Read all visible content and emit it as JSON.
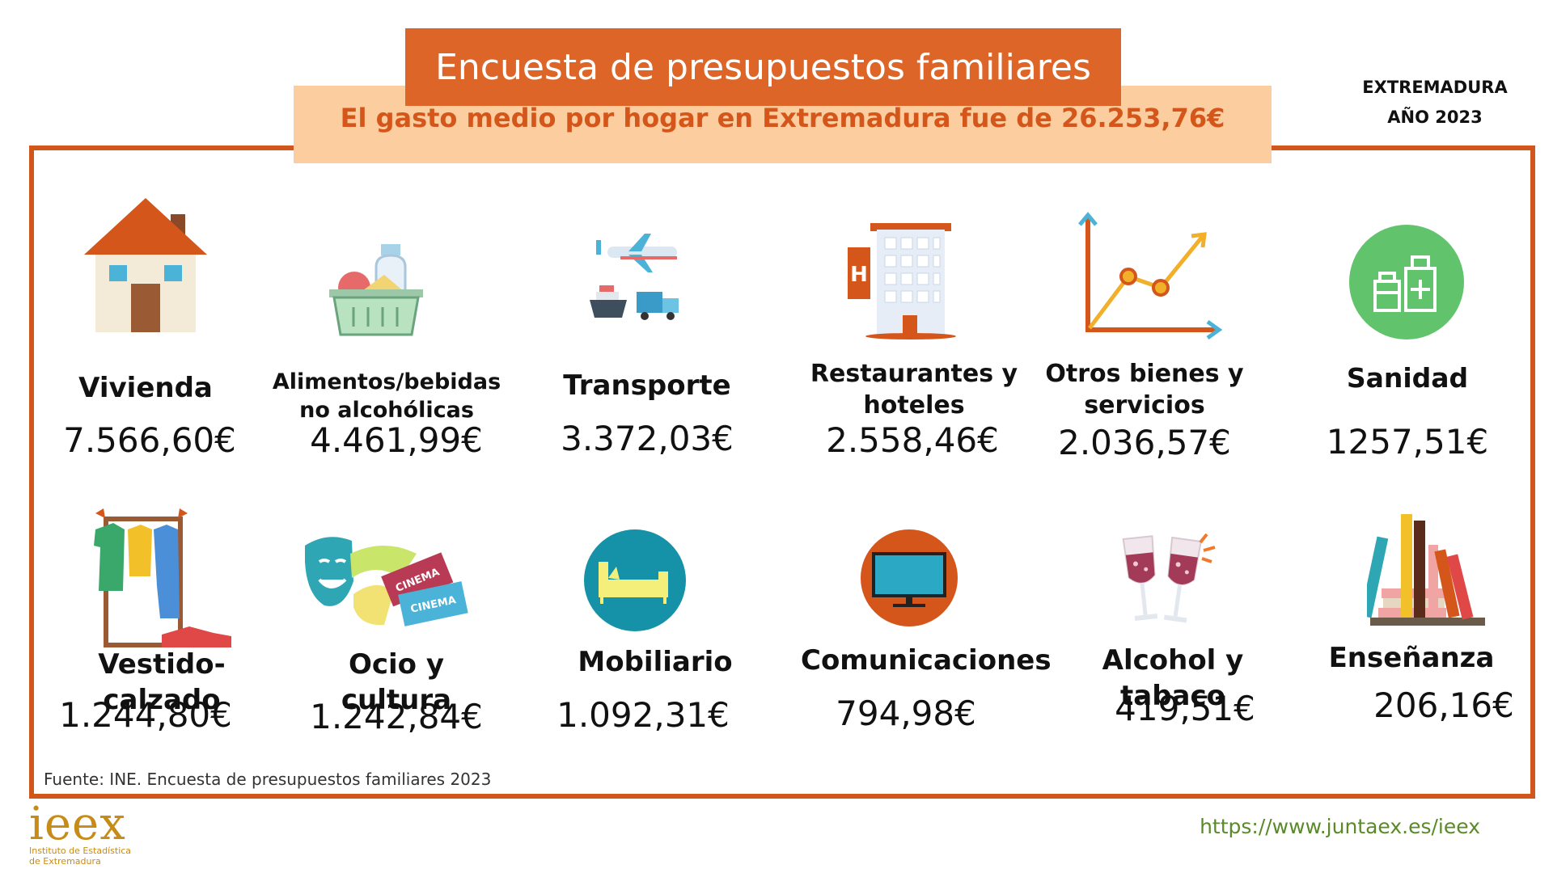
{
  "header": {
    "title": "Encuesta de presupuestos familiares",
    "subtitle": "El gasto medio por hogar en Extremadura fue de  26.253,76€",
    "region": "EXTREMADURA",
    "year": "AÑO 2023"
  },
  "items": [
    {
      "label": "Vivienda",
      "value": "7.566,60€",
      "icon": "house-icon"
    },
    {
      "label": "Alimentos/bebidas no alcohólicas",
      "value": "4.461,99€",
      "icon": "grocery-basket-icon"
    },
    {
      "label": "Transporte",
      "value": "3.372,03€",
      "icon": "transport-icon"
    },
    {
      "label": "Restaurantes y hoteles",
      "value": "2.558,46€",
      "icon": "hotel-icon"
    },
    {
      "label": "Otros bienes y servicios",
      "value": "2.036,57€",
      "icon": "line-graph-icon"
    },
    {
      "label": "Sanidad",
      "value": "1257,51€",
      "icon": "medicine-icon"
    },
    {
      "label": "Vestido-calzado",
      "value": "1.244,80€",
      "icon": "clothes-rack-icon"
    },
    {
      "label": "Ocio y cultura",
      "value": "1.242,84€",
      "icon": "theater-cinema-icon"
    },
    {
      "label": "Mobiliario",
      "value": "1.092,31€",
      "icon": "sofa-icon"
    },
    {
      "label": "Comunicaciones",
      "value": "794,98€",
      "icon": "television-icon"
    },
    {
      "label": "Alcohol y tabaco",
      "value": "419,51€",
      "icon": "wine-glasses-icon"
    },
    {
      "label": "Enseñanza",
      "value": "206,16€",
      "icon": "books-icon"
    }
  ],
  "footer": {
    "source": "Fuente: INE. Encuesta de presupuestos familiares 2023",
    "logo_main": "ieex",
    "logo_line1": "Instituto de Estadística",
    "logo_line2": "de Extremadura",
    "url": "https://www.juntaex.es/ieex"
  },
  "colors": {
    "accent": "#dc6527",
    "subtitle_bg": "#fbcd9f",
    "subtitle_text": "#d4561a",
    "frame": "#d0561c",
    "url": "#5a8a2a",
    "logo": "#c78b18"
  }
}
